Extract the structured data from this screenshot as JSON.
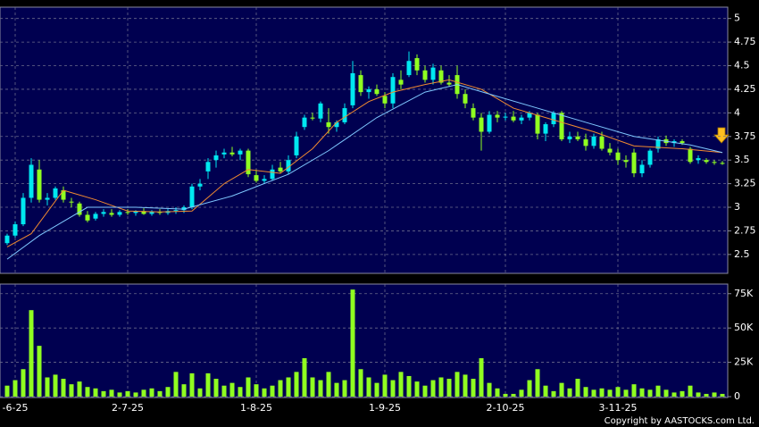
{
  "copyright": "Copyright by AASTOCKS.com Ltd.",
  "chart_data": [
    {
      "type": "candlestick",
      "categories": [
        null,
        "-6-25",
        null,
        null,
        null,
        null,
        null,
        null,
        null,
        null,
        null,
        null,
        null,
        null,
        null,
        "2-7-25",
        null,
        null,
        null,
        null,
        null,
        null,
        null,
        null,
        null,
        null,
        null,
        null,
        null,
        null,
        null,
        "1-8-25",
        null,
        null,
        null,
        null,
        null,
        null,
        null,
        null,
        null,
        null,
        null,
        null,
        null,
        null,
        null,
        "1-9-25",
        null,
        null,
        null,
        null,
        null,
        null,
        null,
        null,
        null,
        null,
        null,
        null,
        null,
        null,
        "2-10-25",
        null,
        null,
        null,
        null,
        null,
        null,
        null,
        null,
        null,
        null,
        null,
        null,
        null,
        "3-11-25",
        null,
        null,
        null,
        null,
        null,
        null,
        null,
        null,
        null,
        null,
        null,
        null,
        null
      ],
      "open": [
        2.62,
        2.7,
        2.82,
        3.1,
        3.4,
        3.08,
        3.1,
        3.18,
        3.06,
        3.04,
        2.92,
        2.88,
        2.93,
        2.94,
        2.92,
        2.95,
        2.94,
        2.96,
        2.93,
        2.95,
        2.94,
        2.96,
        2.97,
        3.0,
        3.22,
        3.38,
        3.5,
        3.56,
        3.58,
        3.56,
        3.6,
        3.34,
        3.28,
        3.3,
        3.42,
        3.38,
        3.55,
        3.85,
        3.95,
        3.94,
        3.9,
        3.85,
        3.9,
        4.08,
        4.4,
        4.22,
        4.25,
        4.18,
        4.1,
        4.35,
        4.4,
        4.58,
        4.45,
        4.35,
        4.45,
        4.32,
        4.4,
        4.2,
        4.05,
        3.95,
        3.8,
        3.98,
        3.95,
        3.96,
        3.92,
        3.95,
        3.98,
        3.78,
        3.88,
        4.0,
        3.72,
        3.75,
        3.72,
        3.65,
        3.75,
        3.62,
        3.58,
        3.5,
        3.58,
        3.36,
        3.45,
        3.62,
        3.72,
        3.68,
        3.7,
        3.62,
        3.5,
        3.5,
        3.48,
        3.47
      ],
      "high": [
        2.72,
        2.85,
        3.15,
        3.52,
        3.5,
        3.15,
        3.22,
        3.22,
        3.1,
        3.06,
        2.96,
        2.95,
        2.98,
        2.98,
        2.97,
        2.98,
        2.97,
        2.99,
        2.97,
        2.98,
        2.98,
        3.0,
        3.02,
        3.25,
        3.3,
        3.52,
        3.6,
        3.62,
        3.64,
        3.62,
        3.62,
        3.4,
        3.34,
        3.45,
        3.48,
        3.55,
        3.8,
        3.98,
        4.0,
        4.12,
        4.05,
        3.92,
        4.1,
        4.55,
        4.45,
        4.28,
        4.3,
        4.22,
        4.42,
        4.45,
        4.65,
        4.62,
        4.5,
        4.52,
        4.5,
        4.4,
        4.5,
        4.25,
        4.1,
        4.0,
        4.02,
        4.02,
        4.0,
        4.02,
        3.98,
        4.02,
        4.0,
        3.9,
        4.02,
        4.02,
        3.8,
        3.8,
        3.78,
        3.78,
        3.8,
        3.68,
        3.62,
        3.55,
        3.62,
        3.5,
        3.62,
        3.75,
        3.76,
        3.72,
        3.72,
        3.64,
        3.55,
        3.52,
        3.5,
        3.49
      ],
      "low": [
        2.6,
        2.68,
        2.8,
        3.05,
        3.05,
        3.02,
        3.08,
        3.05,
        3.0,
        2.9,
        2.84,
        2.86,
        2.9,
        2.9,
        2.9,
        2.92,
        2.91,
        2.92,
        2.91,
        2.92,
        2.92,
        2.93,
        2.94,
        2.98,
        3.18,
        3.3,
        3.42,
        3.52,
        3.54,
        3.5,
        3.32,
        3.26,
        3.25,
        3.28,
        3.36,
        3.35,
        3.52,
        3.82,
        3.92,
        3.9,
        3.78,
        3.8,
        3.88,
        4.05,
        4.18,
        4.15,
        4.18,
        4.05,
        4.05,
        4.25,
        4.38,
        4.4,
        4.32,
        4.3,
        4.3,
        4.28,
        4.15,
        4.05,
        3.92,
        3.6,
        3.78,
        3.9,
        3.92,
        3.9,
        3.88,
        3.92,
        3.72,
        3.7,
        3.85,
        3.7,
        3.68,
        3.7,
        3.6,
        3.62,
        3.6,
        3.55,
        3.45,
        3.42,
        3.32,
        3.32,
        3.42,
        3.58,
        3.65,
        3.64,
        3.66,
        3.46,
        3.46,
        3.46,
        3.45,
        3.45
      ],
      "close": [
        2.7,
        2.82,
        3.1,
        3.45,
        3.08,
        3.1,
        3.2,
        3.08,
        3.05,
        2.92,
        2.86,
        2.93,
        2.95,
        2.92,
        2.95,
        2.94,
        2.96,
        2.93,
        2.95,
        2.94,
        2.96,
        2.97,
        3.0,
        3.22,
        3.25,
        3.48,
        3.55,
        3.58,
        3.56,
        3.6,
        3.35,
        3.28,
        3.3,
        3.4,
        3.38,
        3.5,
        3.75,
        3.95,
        3.94,
        4.1,
        3.85,
        3.9,
        4.05,
        4.42,
        4.22,
        4.25,
        4.2,
        4.1,
        4.38,
        4.3,
        4.55,
        4.45,
        4.35,
        4.48,
        4.32,
        4.3,
        4.2,
        4.1,
        3.95,
        3.8,
        3.98,
        3.95,
        3.96,
        3.92,
        3.95,
        4.0,
        3.78,
        3.88,
        4.0,
        3.72,
        3.75,
        3.72,
        3.65,
        3.75,
        3.62,
        3.58,
        3.5,
        3.48,
        3.36,
        3.45,
        3.6,
        3.72,
        3.68,
        3.7,
        3.68,
        3.48,
        3.52,
        3.48,
        3.47,
        3.46
      ],
      "up_color": "#00e8f0",
      "down_color": "#90ff20",
      "series": [
        {
          "color": "#f08a30",
          "x": [
            0,
            3,
            7,
            11,
            15,
            19,
            23,
            27,
            30,
            34,
            38,
            41,
            45,
            48,
            52,
            55,
            59,
            63,
            67,
            73,
            78,
            84,
            89
          ],
          "values": [
            2.58,
            2.72,
            3.18,
            3.08,
            2.96,
            2.95,
            2.96,
            3.25,
            3.4,
            3.36,
            3.62,
            3.9,
            4.12,
            4.22,
            4.3,
            4.35,
            4.25,
            4.05,
            3.95,
            3.8,
            3.65,
            3.62,
            3.58
          ]
        },
        {
          "color": "#7fc8ff",
          "x": [
            0,
            4,
            10,
            16,
            22,
            28,
            35,
            40,
            46,
            52,
            56,
            60,
            66,
            72,
            78,
            85,
            89
          ],
          "values": [
            2.45,
            2.7,
            3.0,
            3.0,
            2.98,
            3.12,
            3.35,
            3.6,
            3.95,
            4.22,
            4.3,
            4.2,
            4.05,
            3.9,
            3.75,
            3.66,
            3.58
          ]
        }
      ],
      "ylim": [
        2.3,
        5.12
      ],
      "yticks": [
        2.5,
        2.75,
        3,
        3.25,
        3.5,
        3.75,
        4,
        4.25,
        4.5,
        4.75,
        5
      ],
      "grid": true
    },
    {
      "type": "bar",
      "values": [
        8000,
        12000,
        20000,
        63000,
        37000,
        14000,
        16000,
        13000,
        9000,
        11000,
        7000,
        6000,
        4000,
        5000,
        3000,
        4000,
        3000,
        5000,
        6000,
        4000,
        7000,
        18000,
        9000,
        17000,
        6000,
        17000,
        13000,
        8000,
        10000,
        7000,
        14000,
        9000,
        6000,
        8000,
        12000,
        14000,
        18000,
        28000,
        14000,
        12000,
        18000,
        10000,
        12000,
        78000,
        20000,
        14000,
        10000,
        16000,
        12000,
        18000,
        15000,
        11000,
        8000,
        12000,
        14000,
        13000,
        18000,
        16000,
        13000,
        28000,
        10000,
        6000,
        2000,
        2000,
        5000,
        12000,
        20000,
        8000,
        4000,
        10000,
        6000,
        13000,
        7000,
        5000,
        6000,
        5000,
        7000,
        5000,
        9000,
        6000,
        5000,
        8000,
        5000,
        3000,
        4000,
        8000,
        3000,
        2000,
        3000,
        2000
      ],
      "color": "#90ff20",
      "ylim": [
        0,
        82000
      ],
      "yticks": [
        0,
        {
          "value": 25000,
          "label": "25K"
        },
        {
          "value": 50000,
          "label": "50K"
        },
        {
          "value": 75000,
          "label": "75K"
        }
      ],
      "grid": true
    }
  ]
}
